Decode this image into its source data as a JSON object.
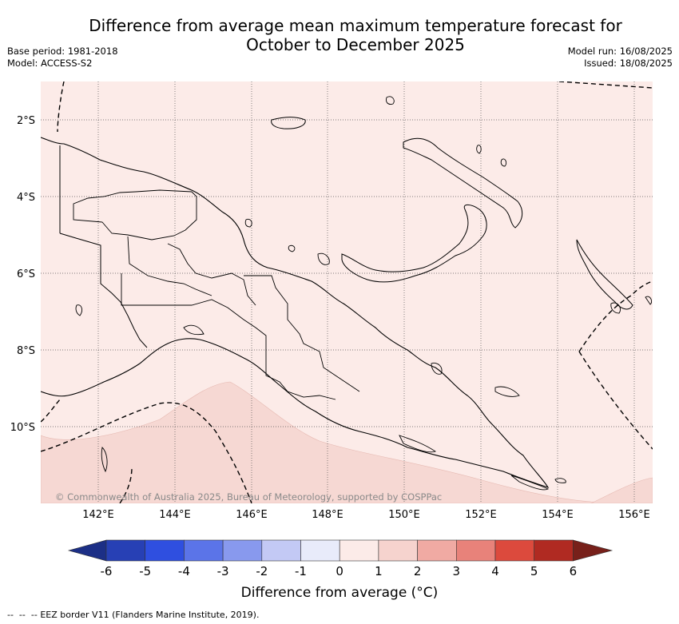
{
  "title_line1": "Difference from average mean maximum temperature forecast for",
  "title_line2": "October to December 2025",
  "base_period": "Base period: 1981-2018",
  "model": "Model: ACCESS-S2",
  "model_run": "Model run: 16/08/2025",
  "issued": "Issued: 18/08/2025",
  "copyright": "© Commonwealth of Australia 2025, Bureau of Meteorology, supported by COSPPac",
  "lat_labels": [
    "2°S",
    "4°S",
    "6°S",
    "8°S",
    "10°S"
  ],
  "lon_labels": [
    "142°E",
    "144°E",
    "146°E",
    "148°E",
    "150°E",
    "152°E",
    "154°E",
    "156°E"
  ],
  "colorbar": {
    "labels": [
      "-6",
      "-5",
      "-4",
      "-3",
      "-2",
      "-1",
      "0",
      "1",
      "2",
      "3",
      "4",
      "5",
      "6"
    ],
    "colors": [
      "#1c2f86",
      "#2740b5",
      "#2f4fe0",
      "#5b74e8",
      "#8899ee",
      "#c3c9f5",
      "#e8ebfa",
      "#fcebe8",
      "#f6d3ce",
      "#f0aaa3",
      "#e8827a",
      "#dc4a3d",
      "#b02a22",
      "#77201a"
    ],
    "title": "Difference from average (°C)"
  },
  "legend_footnote": "EEZ border V11 (Flanders Marine Institute, 2019).",
  "colors": {
    "background_anomaly": "#fcebe8",
    "warmer_band": "#f6d8d3"
  }
}
